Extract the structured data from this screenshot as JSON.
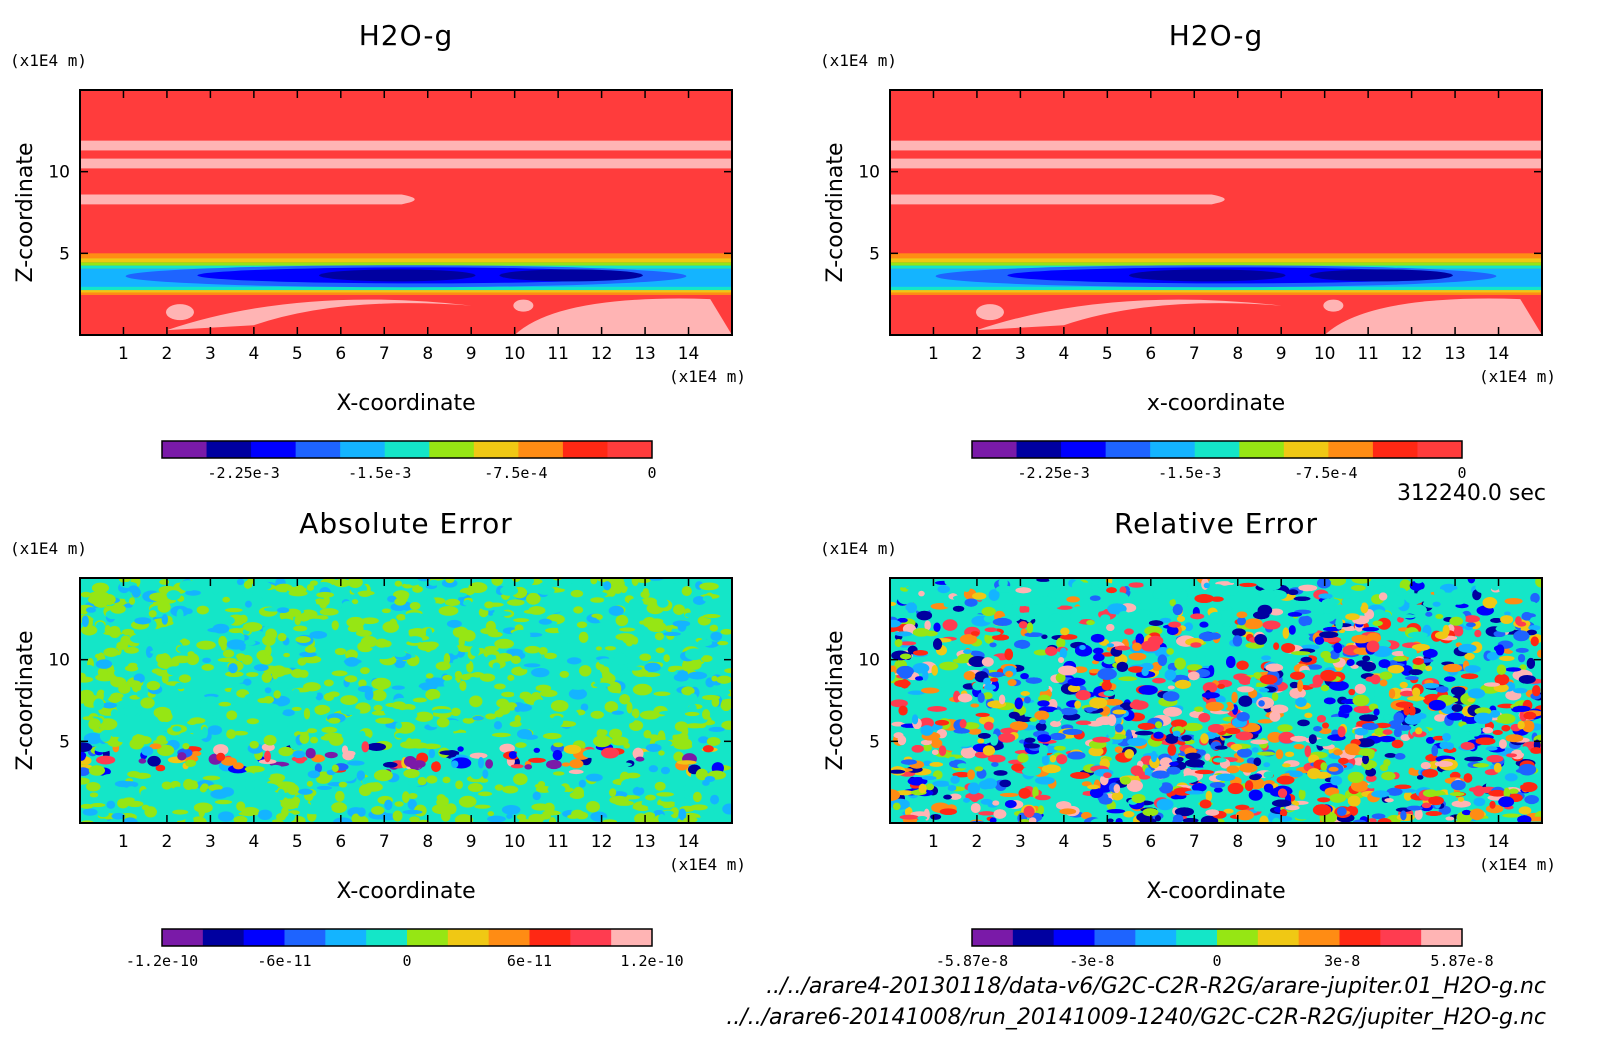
{
  "time_label": "312240.0 sec",
  "file_lines": [
    "../../arare4-20130118/data-v6/G2C-C2R-R2G/arare-jupiter.01_H2O-g.nc",
    "../../arare6-20141008/run_20141009-1240/G2C-C2R-R2G/jupiter_H2O-g.nc"
  ],
  "chart_data": [
    {
      "type": "heatmap",
      "title": "H2O-g",
      "xlabel": "X-coordinate",
      "ylabel": "Z-coordinate",
      "x_unit": "(x1E4 m)",
      "y_unit": "(x1E4 m)",
      "xlim": [
        0,
        15
      ],
      "ylim": [
        0,
        15
      ],
      "x_ticks": [
        1,
        2,
        3,
        4,
        5,
        6,
        7,
        8,
        9,
        10,
        11,
        12,
        13,
        14
      ],
      "y_ticks": [
        5,
        10
      ],
      "colorbar": {
        "colors": [
          "#7a1aa8",
          "#0000a0",
          "#0000ff",
          "#1e64ff",
          "#14b4ff",
          "#14e6c8",
          "#96e614",
          "#f0c814",
          "#ff8c14",
          "#ff2814",
          "#ff3c3c"
        ],
        "tick_labels": [
          "-2.25e-3",
          "-1.5e-3",
          "-7.5e-4",
          "0"
        ],
        "tick_values": [
          -0.00225,
          -0.0015,
          -0.00075,
          0
        ],
        "range": [
          -0.0027,
          0
        ]
      },
      "field": "moist"
    },
    {
      "type": "heatmap",
      "title": "H2O-g",
      "xlabel": "x-coordinate",
      "ylabel": "Z-coordinate",
      "x_unit": "(x1E4 m)",
      "y_unit": "(x1E4 m)",
      "xlim": [
        0,
        15
      ],
      "ylim": [
        0,
        15
      ],
      "x_ticks": [
        1,
        2,
        3,
        4,
        5,
        6,
        7,
        8,
        9,
        10,
        11,
        12,
        13,
        14
      ],
      "y_ticks": [
        5,
        10
      ],
      "colorbar": {
        "colors": [
          "#7a1aa8",
          "#0000a0",
          "#0000ff",
          "#1e64ff",
          "#14b4ff",
          "#14e6c8",
          "#96e614",
          "#f0c814",
          "#ff8c14",
          "#ff2814",
          "#ff3c3c"
        ],
        "tick_labels": [
          "-2.25e-3",
          "-1.5e-3",
          "-7.5e-4",
          "0"
        ],
        "tick_values": [
          -0.00225,
          -0.0015,
          -0.00075,
          0
        ],
        "range": [
          -0.0027,
          0
        ]
      },
      "field": "moist"
    },
    {
      "type": "heatmap",
      "title": "Absolute Error",
      "xlabel": "X-coordinate",
      "ylabel": "Z-coordinate",
      "x_unit": "(x1E4 m)",
      "y_unit": "(x1E4 m)",
      "xlim": [
        0,
        15
      ],
      "ylim": [
        0,
        15
      ],
      "x_ticks": [
        1,
        2,
        3,
        4,
        5,
        6,
        7,
        8,
        9,
        10,
        11,
        12,
        13,
        14
      ],
      "y_ticks": [
        5,
        10
      ],
      "colorbar": {
        "colors": [
          "#7a1aa8",
          "#0000a0",
          "#0000ff",
          "#1e64ff",
          "#14b4ff",
          "#14e6c8",
          "#96e614",
          "#f0c814",
          "#ff8c14",
          "#ff2814",
          "#ff3c50",
          "#ffb4b4"
        ],
        "tick_labels": [
          "-1.2e-10",
          "-6e-11",
          "0",
          "6e-11",
          "1.2e-10"
        ],
        "tick_values": [
          -1.2e-10,
          -6e-11,
          0,
          6e-11,
          1.2e-10
        ],
        "range": [
          -1.2e-10,
          1.2e-10
        ]
      },
      "field": "abs"
    },
    {
      "type": "heatmap",
      "title": "Relative Error",
      "xlabel": "X-coordinate",
      "ylabel": "Z-coordinate",
      "x_unit": "(x1E4 m)",
      "y_unit": "(x1E4 m)",
      "xlim": [
        0,
        15
      ],
      "ylim": [
        0,
        15
      ],
      "x_ticks": [
        1,
        2,
        3,
        4,
        5,
        6,
        7,
        8,
        9,
        10,
        11,
        12,
        13,
        14
      ],
      "y_ticks": [
        5,
        10
      ],
      "colorbar": {
        "colors": [
          "#7a1aa8",
          "#0000a0",
          "#0000ff",
          "#1e64ff",
          "#14b4ff",
          "#14e6c8",
          "#96e614",
          "#f0c814",
          "#ff8c14",
          "#ff2814",
          "#ff3c50",
          "#ffb4b4"
        ],
        "tick_labels": [
          "-5.87e-8",
          "-3e-8",
          "0",
          "3e-8",
          "5.87e-8"
        ],
        "tick_values": [
          -5.87e-08,
          -3e-08,
          0,
          3e-08,
          5.87e-08
        ],
        "range": [
          -5.87e-08,
          5.87e-08
        ]
      },
      "field": "rel"
    }
  ]
}
